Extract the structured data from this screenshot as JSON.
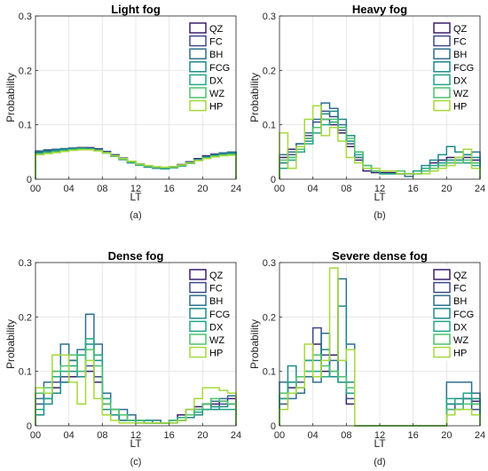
{
  "chart_data": [
    {
      "type": "stairs",
      "title": "Light fog",
      "xlabel": "LT",
      "ylabel": "Probability",
      "caption": "(a)",
      "xlim": [
        0,
        24
      ],
      "ylim": [
        0,
        0.3
      ],
      "xticks": [
        "00",
        "04",
        "08",
        "12",
        "16",
        "20",
        "24"
      ],
      "yticks": [
        "0",
        "0.1",
        "0.2",
        "0.3"
      ],
      "grid": true,
      "legend_position": "top-right",
      "series": [
        {
          "name": "QZ",
          "color": "#3b1f6e",
          "values": [
            0.05,
            0.052,
            0.054,
            0.056,
            0.057,
            0.058,
            0.057,
            0.055,
            0.05,
            0.044,
            0.038,
            0.032,
            0.027,
            0.024,
            0.022,
            0.021,
            0.023,
            0.027,
            0.032,
            0.038,
            0.043,
            0.046,
            0.048,
            0.049
          ]
        },
        {
          "name": "FC",
          "color": "#3d4a8c",
          "values": [
            0.048,
            0.05,
            0.052,
            0.054,
            0.056,
            0.057,
            0.058,
            0.056,
            0.051,
            0.045,
            0.039,
            0.033,
            0.028,
            0.024,
            0.022,
            0.021,
            0.022,
            0.026,
            0.031,
            0.037,
            0.042,
            0.045,
            0.047,
            0.048
          ]
        },
        {
          "name": "BH",
          "color": "#2f6f8f",
          "values": [
            0.052,
            0.054,
            0.055,
            0.056,
            0.057,
            0.057,
            0.056,
            0.054,
            0.049,
            0.043,
            0.037,
            0.031,
            0.026,
            0.023,
            0.021,
            0.02,
            0.022,
            0.026,
            0.031,
            0.036,
            0.041,
            0.045,
            0.048,
            0.05
          ]
        },
        {
          "name": "FCG",
          "color": "#1f8a8a",
          "values": [
            0.049,
            0.051,
            0.053,
            0.055,
            0.056,
            0.057,
            0.056,
            0.053,
            0.048,
            0.042,
            0.036,
            0.03,
            0.026,
            0.022,
            0.02,
            0.019,
            0.021,
            0.025,
            0.03,
            0.035,
            0.04,
            0.044,
            0.046,
            0.048
          ]
        },
        {
          "name": "DX",
          "color": "#21a685",
          "values": [
            0.047,
            0.049,
            0.051,
            0.053,
            0.055,
            0.056,
            0.055,
            0.053,
            0.048,
            0.042,
            0.036,
            0.031,
            0.026,
            0.023,
            0.021,
            0.02,
            0.021,
            0.024,
            0.029,
            0.035,
            0.04,
            0.043,
            0.045,
            0.046
          ]
        },
        {
          "name": "WZ",
          "color": "#4cc26c",
          "values": [
            0.046,
            0.048,
            0.05,
            0.052,
            0.054,
            0.055,
            0.055,
            0.053,
            0.049,
            0.043,
            0.037,
            0.032,
            0.027,
            0.024,
            0.022,
            0.021,
            0.022,
            0.025,
            0.03,
            0.035,
            0.039,
            0.042,
            0.044,
            0.045
          ]
        },
        {
          "name": "HP",
          "color": "#a6d93a",
          "values": [
            0.045,
            0.047,
            0.049,
            0.051,
            0.053,
            0.054,
            0.054,
            0.052,
            0.048,
            0.043,
            0.038,
            0.033,
            0.028,
            0.025,
            0.023,
            0.022,
            0.023,
            0.026,
            0.03,
            0.034,
            0.038,
            0.041,
            0.043,
            0.044
          ]
        }
      ]
    },
    {
      "type": "stairs",
      "title": "Heavy fog",
      "xlabel": "LT",
      "ylabel": "Probability",
      "caption": "(b)",
      "xlim": [
        0,
        24
      ],
      "ylim": [
        0,
        0.3
      ],
      "xticks": [
        "00",
        "04",
        "08",
        "12",
        "16",
        "20",
        "24"
      ],
      "yticks": [
        "0",
        "0.1",
        "0.2",
        "0.3"
      ],
      "grid": true,
      "legend_position": "top-right",
      "series": [
        {
          "name": "QZ",
          "color": "#3b1f6e",
          "values": [
            0.04,
            0.055,
            0.065,
            0.075,
            0.095,
            0.11,
            0.1,
            0.085,
            0.06,
            0.035,
            0.015,
            0.012,
            0.012,
            0.012,
            0.01,
            0.01,
            0.015,
            0.02,
            0.03,
            0.035,
            0.04,
            0.035,
            0.04,
            0.035
          ]
        },
        {
          "name": "FC",
          "color": "#3d4a8c",
          "values": [
            0.03,
            0.045,
            0.06,
            0.08,
            0.105,
            0.125,
            0.115,
            0.09,
            0.065,
            0.04,
            0.02,
            0.015,
            0.015,
            0.015,
            0.01,
            0.01,
            0.01,
            0.015,
            0.02,
            0.025,
            0.03,
            0.03,
            0.03,
            0.03
          ]
        },
        {
          "name": "BH",
          "color": "#2f6f8f",
          "values": [
            0.045,
            0.05,
            0.065,
            0.085,
            0.11,
            0.14,
            0.13,
            0.1,
            0.07,
            0.04,
            0.02,
            0.015,
            0.01,
            0.01,
            0.01,
            0.005,
            0.01,
            0.015,
            0.02,
            0.03,
            0.035,
            0.04,
            0.045,
            0.05
          ]
        },
        {
          "name": "FCG",
          "color": "#1f8a8a",
          "values": [
            0.03,
            0.04,
            0.055,
            0.07,
            0.095,
            0.12,
            0.125,
            0.11,
            0.08,
            0.05,
            0.025,
            0.015,
            0.01,
            0.01,
            0.01,
            0.01,
            0.015,
            0.025,
            0.035,
            0.045,
            0.06,
            0.05,
            0.045,
            0.04
          ]
        },
        {
          "name": "DX",
          "color": "#21a685",
          "values": [
            0.02,
            0.035,
            0.05,
            0.065,
            0.085,
            0.1,
            0.105,
            0.095,
            0.07,
            0.045,
            0.025,
            0.015,
            0.01,
            0.01,
            0.01,
            0.01,
            0.015,
            0.02,
            0.025,
            0.03,
            0.035,
            0.035,
            0.03,
            0.025
          ]
        },
        {
          "name": "WZ",
          "color": "#4cc26c",
          "values": [
            0.035,
            0.04,
            0.055,
            0.075,
            0.095,
            0.11,
            0.11,
            0.095,
            0.075,
            0.05,
            0.025,
            0.015,
            0.015,
            0.015,
            0.015,
            0.01,
            0.01,
            0.015,
            0.02,
            0.025,
            0.03,
            0.03,
            0.035,
            0.03
          ]
        },
        {
          "name": "HP",
          "color": "#a6d93a",
          "values": [
            0.085,
            0.02,
            0.06,
            0.11,
            0.135,
            0.08,
            0.095,
            0.07,
            0.04,
            0.03,
            0.02,
            0.02,
            0.015,
            0.015,
            0.01,
            0.01,
            0.01,
            0.01,
            0.015,
            0.02,
            0.025,
            0.04,
            0.055,
            0.02
          ]
        }
      ]
    },
    {
      "type": "stairs",
      "title": "Dense fog",
      "xlabel": "LT",
      "ylabel": "Probability",
      "caption": "(c)",
      "xlim": [
        0,
        24
      ],
      "ylim": [
        0,
        0.3
      ],
      "xticks": [
        "00",
        "04",
        "08",
        "12",
        "16",
        "20",
        "24"
      ],
      "yticks": [
        "0",
        "0.1",
        "0.2",
        "0.3"
      ],
      "grid": true,
      "legend_position": "top-right",
      "series": [
        {
          "name": "QZ",
          "color": "#3b1f6e",
          "values": [
            0.06,
            0.05,
            0.07,
            0.08,
            0.09,
            0.09,
            0.1,
            0.08,
            0.04,
            0.02,
            0.01,
            0.01,
            0.01,
            0.005,
            0.005,
            0.005,
            0.01,
            0.02,
            0.03,
            0.035,
            0.04,
            0.04,
            0.045,
            0.05
          ]
        },
        {
          "name": "FC",
          "color": "#3d4a8c",
          "values": [
            0.04,
            0.06,
            0.08,
            0.09,
            0.12,
            0.1,
            0.11,
            0.09,
            0.05,
            0.03,
            0.02,
            0.01,
            0.01,
            0.01,
            0.005,
            0.005,
            0.01,
            0.01,
            0.02,
            0.03,
            0.04,
            0.035,
            0.04,
            0.04
          ]
        },
        {
          "name": "BH",
          "color": "#2f6f8f",
          "values": [
            0.05,
            0.08,
            0.1,
            0.15,
            0.12,
            0.14,
            0.205,
            0.15,
            0.06,
            0.03,
            0.03,
            0.02,
            0.01,
            0.01,
            0.01,
            0.005,
            0.005,
            0.01,
            0.02,
            0.03,
            0.04,
            0.045,
            0.05,
            0.055
          ]
        },
        {
          "name": "FCG",
          "color": "#1f8a8a",
          "values": [
            0.02,
            0.04,
            0.06,
            0.08,
            0.1,
            0.09,
            0.15,
            0.12,
            0.03,
            0.02,
            0.01,
            0.01,
            0.005,
            0.005,
            0.005,
            0.005,
            0.01,
            0.01,
            0.015,
            0.02,
            0.03,
            0.03,
            0.035,
            0.04
          ]
        },
        {
          "name": "DX",
          "color": "#21a685",
          "values": [
            0.03,
            0.05,
            0.09,
            0.1,
            0.11,
            0.13,
            0.16,
            0.13,
            0.05,
            0.03,
            0.02,
            0.01,
            0.01,
            0.01,
            0.005,
            0.005,
            0.01,
            0.015,
            0.02,
            0.025,
            0.03,
            0.035,
            0.03,
            0.03
          ]
        },
        {
          "name": "WZ",
          "color": "#4cc26c",
          "values": [
            0.06,
            0.07,
            0.1,
            0.11,
            0.13,
            0.1,
            0.14,
            0.11,
            0.04,
            0.03,
            0.02,
            0.01,
            0.01,
            0.005,
            0.005,
            0.005,
            0.01,
            0.01,
            0.02,
            0.03,
            0.04,
            0.05,
            0.045,
            0.04
          ]
        },
        {
          "name": "HP",
          "color": "#a6d93a",
          "values": [
            0.07,
            0.06,
            0.13,
            0.13,
            0.08,
            0.04,
            0.12,
            0.05,
            0.02,
            0.01,
            0.005,
            0.005,
            0.005,
            0.005,
            0.005,
            0.005,
            0.005,
            0.01,
            0.03,
            0.05,
            0.07,
            0.07,
            0.065,
            0.06
          ]
        }
      ]
    },
    {
      "type": "stairs",
      "title": "Severe dense fog",
      "xlabel": "LT",
      "ylabel": "Probability",
      "caption": "(d)",
      "xlim": [
        0,
        24
      ],
      "ylim": [
        0,
        0.3
      ],
      "xticks": [
        "00",
        "04",
        "08",
        "12",
        "16",
        "20",
        "24"
      ],
      "yticks": [
        "0",
        "0.1",
        "0.2",
        "0.3"
      ],
      "grid": true,
      "legend_position": "top-right",
      "series": [
        {
          "name": "QZ",
          "color": "#3b1f6e",
          "values": [
            0.05,
            0.07,
            0.09,
            0.12,
            0.15,
            0.1,
            0.13,
            0.09,
            0.04,
            0.0,
            0.0,
            0.0,
            0.0,
            0.0,
            0.0,
            0.0,
            0.0,
            0.0,
            0.0,
            0.0,
            0.03,
            0.04,
            0.05,
            0.045
          ]
        },
        {
          "name": "FC",
          "color": "#3d4a8c",
          "values": [
            0.04,
            0.08,
            0.08,
            0.1,
            0.18,
            0.13,
            0.09,
            0.08,
            0.05,
            0.0,
            0.0,
            0.0,
            0.0,
            0.0,
            0.0,
            0.0,
            0.0,
            0.0,
            0.0,
            0.0,
            0.04,
            0.03,
            0.05,
            0.03
          ]
        },
        {
          "name": "BH",
          "color": "#2f6f8f",
          "values": [
            0.08,
            0.05,
            0.06,
            0.09,
            0.08,
            0.17,
            0.12,
            0.27,
            0.15,
            0.0,
            0.0,
            0.0,
            0.0,
            0.0,
            0.0,
            0.0,
            0.0,
            0.0,
            0.0,
            0.0,
            0.08,
            0.08,
            0.08,
            0.06
          ]
        },
        {
          "name": "FCG",
          "color": "#1f8a8a",
          "values": [
            0.06,
            0.11,
            0.07,
            0.1,
            0.12,
            0.14,
            0.09,
            0.22,
            0.08,
            0.0,
            0.0,
            0.0,
            0.0,
            0.0,
            0.0,
            0.0,
            0.0,
            0.0,
            0.0,
            0.0,
            0.04,
            0.05,
            0.05,
            0.05
          ]
        },
        {
          "name": "DX",
          "color": "#21a685",
          "values": [
            0.05,
            0.08,
            0.07,
            0.12,
            0.1,
            0.09,
            0.1,
            0.08,
            0.06,
            0.0,
            0.0,
            0.0,
            0.0,
            0.0,
            0.0,
            0.0,
            0.0,
            0.0,
            0.0,
            0.0,
            0.05,
            0.04,
            0.06,
            0.04
          ]
        },
        {
          "name": "WZ",
          "color": "#4cc26c",
          "values": [
            0.06,
            0.06,
            0.09,
            0.1,
            0.13,
            0.11,
            0.1,
            0.09,
            0.07,
            0.0,
            0.0,
            0.0,
            0.0,
            0.0,
            0.0,
            0.0,
            0.0,
            0.0,
            0.0,
            0.0,
            0.03,
            0.03,
            0.04,
            0.04
          ]
        },
        {
          "name": "HP",
          "color": "#a6d93a",
          "values": [
            0.03,
            0.06,
            0.07,
            0.15,
            0.09,
            0.12,
            0.29,
            0.12,
            0.14,
            0.0,
            0.0,
            0.0,
            0.0,
            0.0,
            0.0,
            0.0,
            0.0,
            0.0,
            0.0,
            0.0,
            0.02,
            0.03,
            0.03,
            0.02
          ]
        }
      ]
    }
  ]
}
